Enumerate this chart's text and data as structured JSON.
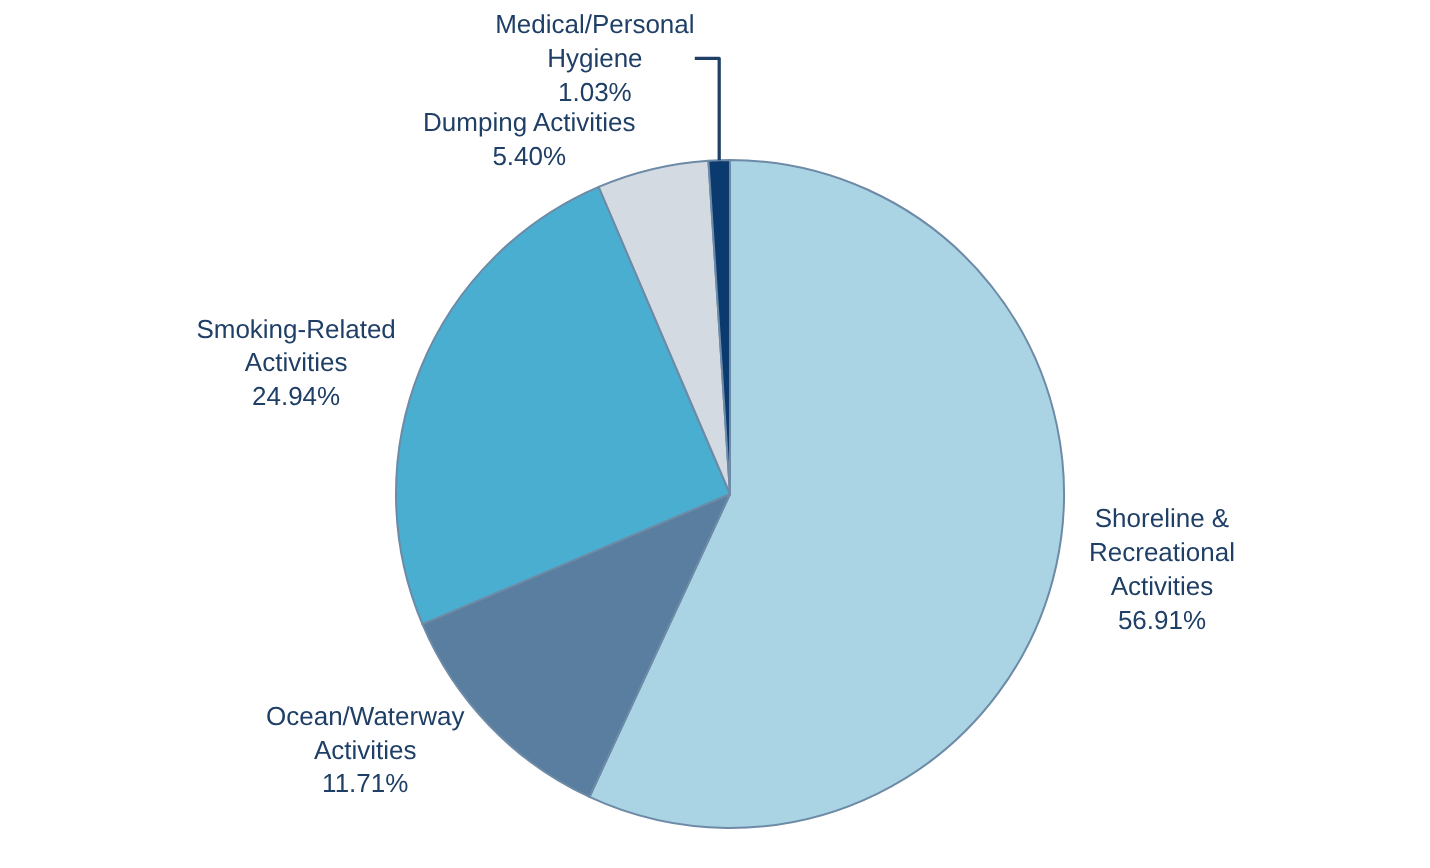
{
  "chart_data": {
    "type": "pie",
    "categories": [
      "Shoreline & Recreational Activities",
      "Ocean/Waterway Activities",
      "Smoking-Related Activities",
      "Dumping Activities",
      "Medical/Personal Hygiene"
    ],
    "values": [
      56.91,
      11.71,
      24.94,
      5.4,
      1.03
    ],
    "value_labels": [
      "56.91%",
      "11.71%",
      "24.94%",
      "5.40%",
      "1.03%"
    ],
    "colors": [
      "#aad3e4",
      "#5a7ea0",
      "#4aaed0",
      "#d3dae2",
      "#0b3a6e"
    ],
    "legend": false
  }
}
